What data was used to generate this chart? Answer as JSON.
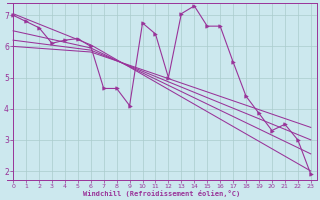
{
  "xlabel": "Windchill (Refroidissement éolien,°C)",
  "background_color": "#cce8ee",
  "line_color": "#993399",
  "grid_color": "#aacccc",
  "xlim": [
    -0.5,
    23.5
  ],
  "ylim": [
    1.7,
    7.4
  ],
  "yticks": [
    2,
    3,
    4,
    5,
    6,
    7
  ],
  "xticks": [
    0,
    1,
    2,
    3,
    4,
    5,
    6,
    7,
    8,
    9,
    10,
    11,
    12,
    13,
    14,
    15,
    16,
    17,
    18,
    19,
    20,
    21,
    22,
    23
  ],
  "data_x": [
    0,
    1,
    2,
    3,
    4,
    5,
    6,
    7,
    8,
    9,
    10,
    11,
    12,
    13,
    14,
    15,
    16,
    17,
    18,
    19,
    20,
    21,
    22,
    23
  ],
  "data_y": [
    7.0,
    6.8,
    6.6,
    6.1,
    6.2,
    6.25,
    6.0,
    4.65,
    4.65,
    4.1,
    6.75,
    6.4,
    5.0,
    7.05,
    7.3,
    6.65,
    6.65,
    5.5,
    4.4,
    3.85,
    3.3,
    3.5,
    3.0,
    1.9
  ],
  "trend_lines": [
    {
      "x0": 0.0,
      "y0": 7.05,
      "x1": 6.0,
      "y1": 6.05,
      "x2": 23.0,
      "y2": 2.0
    },
    {
      "x0": 0.0,
      "y0": 6.5,
      "x1": 6.0,
      "y1": 5.95,
      "x2": 23.0,
      "y2": 2.55
    },
    {
      "x0": 0.0,
      "y0": 6.2,
      "x1": 6.0,
      "y1": 5.88,
      "x2": 23.0,
      "y2": 3.0
    },
    {
      "x0": 0.0,
      "y0": 6.0,
      "x1": 6.0,
      "y1": 5.82,
      "x2": 23.0,
      "y2": 3.4
    }
  ]
}
